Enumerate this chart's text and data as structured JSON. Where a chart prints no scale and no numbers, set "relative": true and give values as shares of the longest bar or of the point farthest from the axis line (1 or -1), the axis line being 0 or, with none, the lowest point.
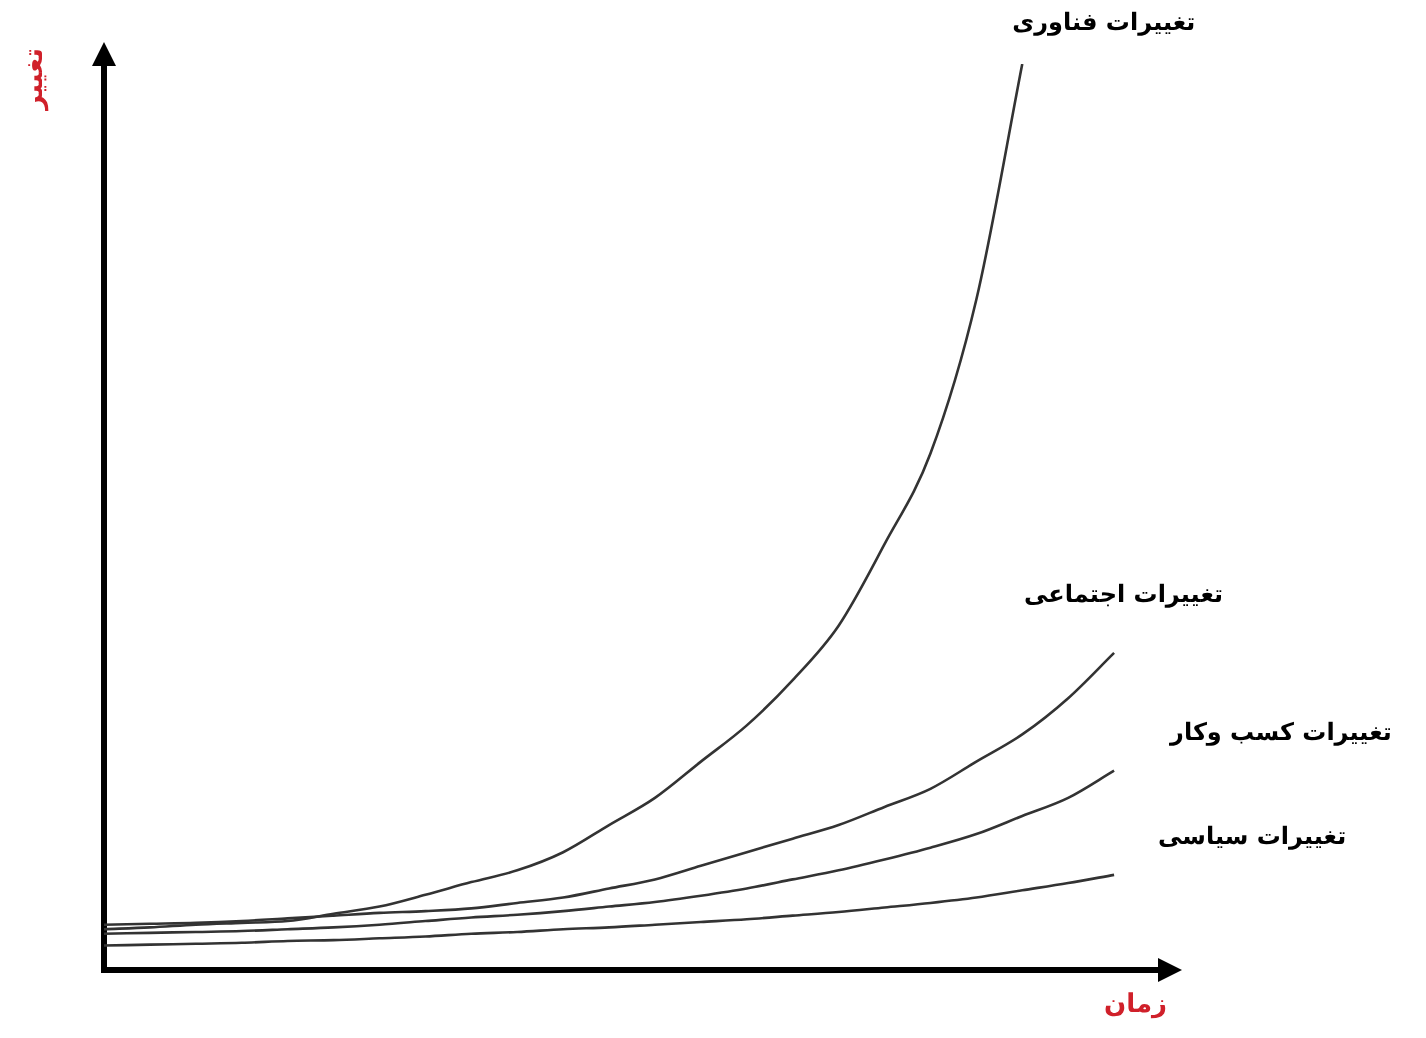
{
  "chart_data": {
    "type": "line",
    "relative": true,
    "xlabel": "زمان",
    "ylabel": "تغییر",
    "marker": "none",
    "line_style": "solid",
    "grid": false,
    "legend": false,
    "categories": [
      null,
      null,
      null,
      null,
      null,
      null,
      null,
      null,
      null,
      null,
      null,
      null,
      null,
      null,
      null,
      null,
      null,
      null,
      null,
      null,
      null,
      null,
      null,
      null
    ],
    "series": [
      {
        "name": "تغییرات فناوری",
        "color": "#333333",
        "values": [
          0.045,
          0.047,
          0.05,
          0.052,
          0.054,
          0.062,
          0.07,
          0.083,
          0.097,
          0.11,
          0.13,
          0.16,
          0.19,
          0.23,
          0.27,
          0.32,
          0.38,
          0.47,
          0.57,
          0.74,
          1,
          null,
          null,
          null
        ]
      },
      {
        "name": "تغییرات اجتماعی",
        "color": "#333333",
        "values": [
          0.05,
          0.051,
          0.052,
          0.054,
          0.057,
          0.06,
          0.063,
          0.065,
          0.068,
          0.074,
          0.08,
          0.09,
          0.1,
          0.115,
          0.13,
          0.145,
          0.16,
          0.18,
          0.2,
          0.23,
          0.26,
          0.3,
          0.35,
          null
        ]
      },
      {
        "name": "تغییرات کسب وکار",
        "color": "#333333",
        "values": [
          0.04,
          0.041,
          0.042,
          0.043,
          0.045,
          0.047,
          0.05,
          0.054,
          0.058,
          0.061,
          0.065,
          0.07,
          0.075,
          0.082,
          0.09,
          0.1,
          0.11,
          0.122,
          0.135,
          0.15,
          0.17,
          0.19,
          0.22,
          null
        ]
      },
      {
        "name": "تغییرات سیاسی",
        "color": "#333333",
        "values": [
          0.027,
          0.028,
          0.029,
          0.03,
          0.032,
          0.033,
          0.035,
          0.037,
          0.04,
          0.042,
          0.045,
          0.047,
          0.05,
          0.053,
          0.056,
          0.06,
          0.064,
          0.069,
          0.074,
          0.08,
          0.088,
          0.096,
          0.105,
          null
        ]
      }
    ]
  }
}
